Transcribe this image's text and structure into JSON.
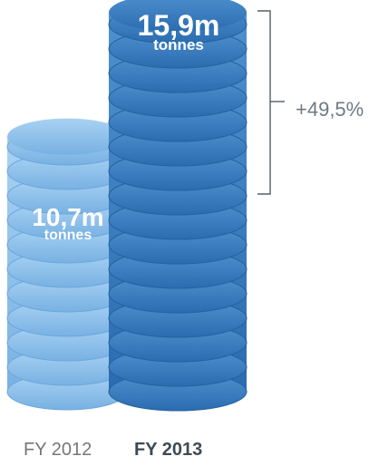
{
  "chart_data": {
    "type": "bar",
    "categories": [
      "FY 2012",
      "FY 2013"
    ],
    "values": [
      10.7,
      15.9
    ],
    "value_labels": [
      "10,7m",
      "15,9m"
    ],
    "unit_label": "tonnes",
    "change_label": "+49,5%",
    "colors": [
      "#7fb8e6",
      "#2f73b8"
    ]
  }
}
